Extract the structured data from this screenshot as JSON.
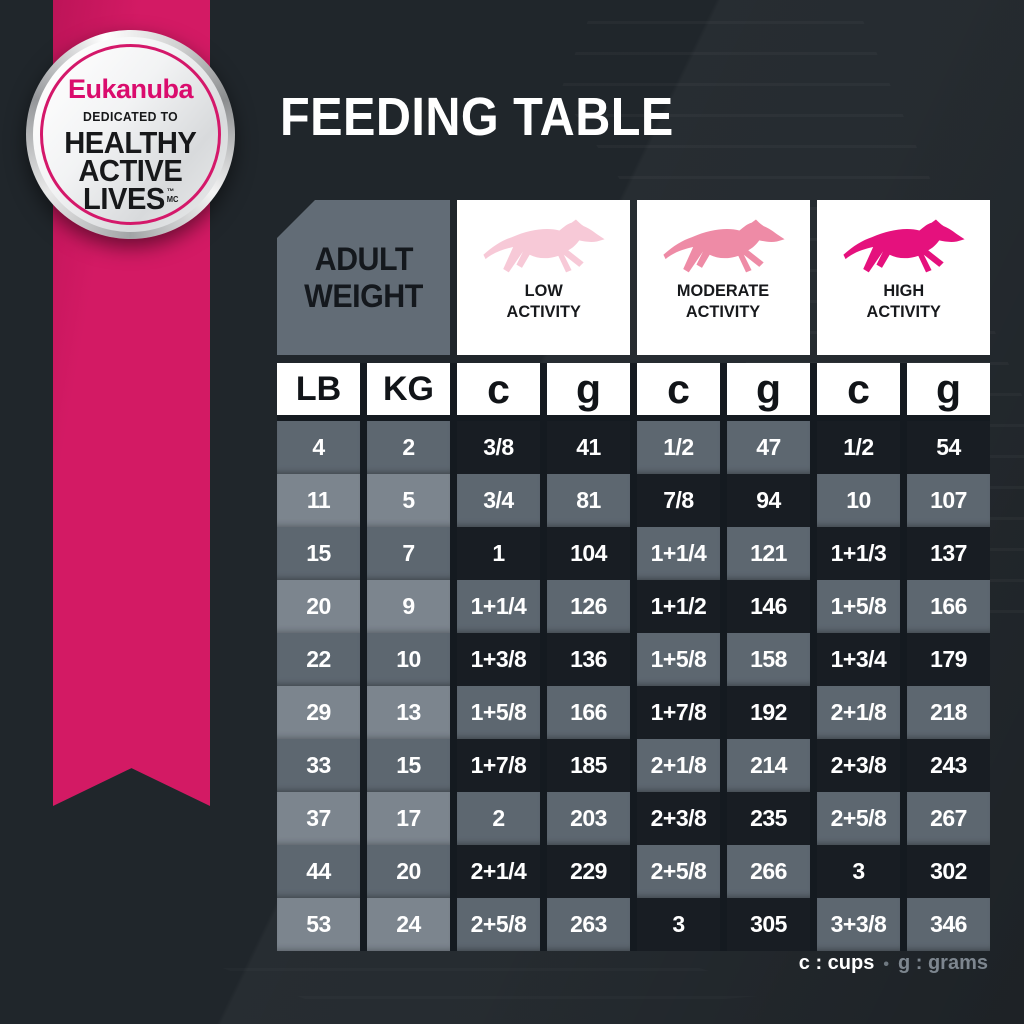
{
  "badge": {
    "brand": "Eukanuba",
    "tagline": "DEDICATED TO",
    "lines": [
      "HEALTHY",
      "ACTIVE",
      "LIVES"
    ],
    "trademark": "™",
    "trademark_mc": "MC"
  },
  "title": "FEEDING TABLE",
  "weight_header": {
    "line1": "ADULT",
    "line2": "WEIGHT"
  },
  "activities": [
    {
      "name": "low",
      "line1": "LOW",
      "line2": "ACTIVITY",
      "dog_color": "#f7c9d7"
    },
    {
      "name": "moderate",
      "line1": "MODERATE",
      "line2": "ACTIVITY",
      "dog_color": "#ee8ba6"
    },
    {
      "name": "high",
      "line1": "HIGH",
      "line2": "ACTIVITY",
      "dog_color": "#e5117d"
    }
  ],
  "legend": {
    "cups": "c : cups",
    "separator": "•",
    "grams": "g : grams"
  },
  "colors": {
    "background": "#20262b",
    "ribbon_pink": "#d31a64",
    "brand_pink": "#da0c6d",
    "cell_dark": "#181d23",
    "cell_mid": "#5d6770",
    "cell_light": "#7c858e",
    "header_gray": "#626c76"
  },
  "chart_data": {
    "type": "table",
    "title": "FEEDING TABLE",
    "column_groups": [
      "ADULT WEIGHT",
      "LOW ACTIVITY",
      "MODERATE ACTIVITY",
      "HIGH ACTIVITY"
    ],
    "columns": [
      "LB",
      "KG",
      "c",
      "g",
      "c",
      "g",
      "c",
      "g"
    ],
    "units_note": "c : cups • g : grams",
    "rows": [
      [
        "4",
        "2",
        "3/8",
        "41",
        "1/2",
        "47",
        "1/2",
        "54"
      ],
      [
        "11",
        "5",
        "3/4",
        "81",
        "7/8",
        "94",
        "10",
        "107"
      ],
      [
        "15",
        "7",
        "1",
        "104",
        "1+1/4",
        "121",
        "1+1/3",
        "137"
      ],
      [
        "20",
        "9",
        "1+1/4",
        "126",
        "1+1/2",
        "146",
        "1+5/8",
        "166"
      ],
      [
        "22",
        "10",
        "1+3/8",
        "136",
        "1+5/8",
        "158",
        "1+3/4",
        "179"
      ],
      [
        "29",
        "13",
        "1+5/8",
        "166",
        "1+7/8",
        "192",
        "2+1/8",
        "218"
      ],
      [
        "33",
        "15",
        "1+7/8",
        "185",
        "2+1/8",
        "214",
        "2+3/8",
        "243"
      ],
      [
        "37",
        "17",
        "2",
        "203",
        "2+3/8",
        "235",
        "2+5/8",
        "267"
      ],
      [
        "44",
        "20",
        "2+1/4",
        "229",
        "2+5/8",
        "266",
        "3",
        "302"
      ],
      [
        "53",
        "24",
        "2+5/8",
        "263",
        "3",
        "305",
        "3+3/8",
        "346"
      ]
    ]
  }
}
